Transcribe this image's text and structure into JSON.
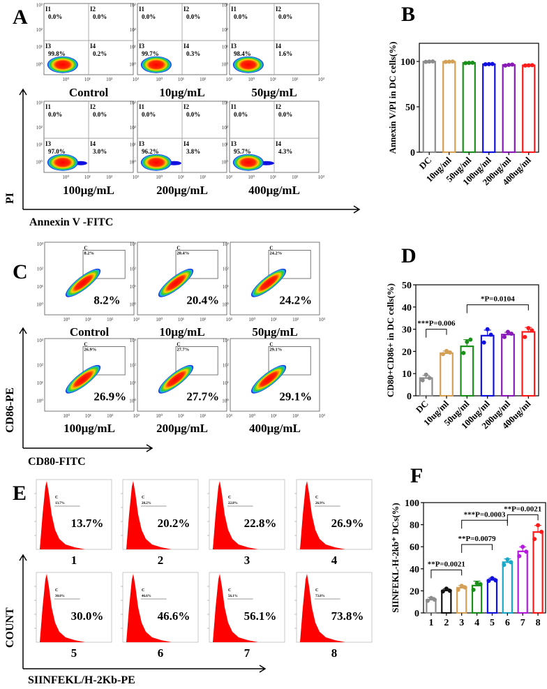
{
  "panel_a": {
    "letter": "A",
    "y_axis_label": "PI",
    "x_axis_label": "Annexin V -FITC",
    "quadrant_names": [
      "I1",
      "I2",
      "I3",
      "I4"
    ],
    "plots": [
      {
        "label": "Control",
        "q": [
          "0.0%",
          "0.0%",
          "99.8%",
          "0.2%"
        ]
      },
      {
        "label": "10μg/mL",
        "q": [
          "0.0%",
          "0.0%",
          "99.7%",
          "0.3%"
        ]
      },
      {
        "label": "50μg/mL",
        "q": [
          "0.0%",
          "0.0%",
          "98.4%",
          "1.6%"
        ]
      },
      {
        "label": "100μg/mL",
        "q": [
          "0.0%",
          "0.0%",
          "97.0%",
          "3.0%"
        ]
      },
      {
        "label": "200μg/mL",
        "q": [
          "0.0%",
          "0.0%",
          "96.2%",
          "3.8%"
        ]
      },
      {
        "label": "400μg/mL",
        "q": [
          "0.0%",
          "0.0%",
          "95.7%",
          "4.3%"
        ]
      }
    ]
  },
  "panel_c": {
    "letter": "C",
    "y_axis_label": "CD86-PE",
    "x_axis_label": "CD80-FITC",
    "gate_name": "C",
    "plots": [
      {
        "label": "Control",
        "pct": "8.2%"
      },
      {
        "label": "10μg/mL",
        "pct": "20.4%"
      },
      {
        "label": "50μg/mL",
        "pct": "24.2%"
      },
      {
        "label": "100μg/mL",
        "pct": "26.9%"
      },
      {
        "label": "200μg/mL",
        "pct": "27.7%"
      },
      {
        "label": "400μg/mL",
        "pct": "29.1%"
      }
    ]
  },
  "panel_e": {
    "letter": "E",
    "y_axis_label": "COUNT",
    "x_axis_label": "SIINFEKL/H-2Kb-PE",
    "gate_name": "C",
    "plots": [
      {
        "label": "1",
        "pct": "13.7%"
      },
      {
        "label": "2",
        "pct": "20.2%"
      },
      {
        "label": "3",
        "pct": "22.8%"
      },
      {
        "label": "4",
        "pct": "26.9%"
      },
      {
        "label": "5",
        "pct": "30.0%"
      },
      {
        "label": "6",
        "pct": "46.6%"
      },
      {
        "label": "7",
        "pct": "56.1%"
      },
      {
        "label": "8",
        "pct": "73.8%"
      }
    ]
  },
  "log_ticks": [
    "10⁰",
    "10¹",
    "10²",
    "10³"
  ],
  "chart_data": [
    {
      "panel": "B",
      "type": "bar",
      "title": "",
      "ylabel": "Annexin V/PI in DC cells(%)",
      "xlabel": "",
      "categories": [
        "DC",
        "10ug/ml",
        "50ug/ml",
        "100ug/ml",
        "200ug/ml",
        "400ug/ml"
      ],
      "values": [
        99.8,
        99.7,
        98.4,
        97.0,
        96.2,
        95.7
      ],
      "points": [
        [
          99.5,
          99.8,
          100
        ],
        [
          99.5,
          99.7,
          99.9
        ],
        [
          98.2,
          98.4,
          98.6
        ],
        [
          96.8,
          97.0,
          97.2
        ],
        [
          95.5,
          96.2,
          96.5
        ],
        [
          95.5,
          95.7,
          95.9
        ]
      ],
      "colors": [
        "#8c8c8c",
        "#d4a056",
        "#1a8f1a",
        "#1010e0",
        "#8a1ab8",
        "#ff1a1a"
      ],
      "yticks": [
        0,
        50,
        100
      ],
      "ylim": [
        0,
        120
      ],
      "annotations": []
    },
    {
      "panel": "D",
      "type": "bar",
      "title": "",
      "ylabel": "CD80+CD86+ in DC cells(%)",
      "xlabel": "",
      "categories": [
        "DC",
        "10ug/ml",
        "50ug/ml",
        "100ug/ml",
        "200ug/ml",
        "400ug/ml"
      ],
      "values": [
        8.0,
        19.2,
        22.3,
        27.1,
        27.6,
        28.8
      ],
      "errors": [
        1.2,
        1.0,
        3.0,
        2.5,
        1.0,
        2.0
      ],
      "points": [
        [
          7.0,
          9.5,
          8.0
        ],
        [
          18.8,
          20.2,
          19.5
        ],
        [
          19.3,
          24.3,
          25.3
        ],
        [
          24.0,
          30.0,
          27.5
        ],
        [
          26.5,
          28.8,
          28.0
        ],
        [
          26.5,
          30.5,
          29.5
        ]
      ],
      "colors": [
        "#8c8c8c",
        "#d4a056",
        "#1a8f1a",
        "#1010e0",
        "#8a1ab8",
        "#ff1a1a"
      ],
      "yticks": [
        0,
        10,
        20,
        30,
        40,
        50
      ],
      "ylim": [
        0,
        50
      ],
      "annotations": [
        {
          "text": "***P=0.006",
          "from": 0,
          "to": 1,
          "level": 30
        },
        {
          "text": "*P=0.0104",
          "from": 2,
          "to": 5,
          "level": 41
        }
      ]
    },
    {
      "panel": "F",
      "type": "bar",
      "title": "",
      "ylabel": "SIINFEKL-H-2kb⁺ DCs(%)",
      "xlabel": "",
      "categories": [
        "1",
        "2",
        "3",
        "4",
        "5",
        "6",
        "7",
        "8"
      ],
      "values": [
        12.0,
        20.3,
        22.8,
        24.8,
        30.0,
        46.0,
        55.8,
        73.3
      ],
      "errors": [
        2.0,
        1.5,
        2.0,
        4.0,
        1.5,
        3.0,
        4.0,
        6.0
      ],
      "points": [
        [
          11,
          13.5,
          12
        ],
        [
          19.5,
          22,
          20
        ],
        [
          21,
          24.5,
          23
        ],
        [
          21,
          27,
          26
        ],
        [
          29,
          31.5,
          29.5
        ],
        [
          43.5,
          48.5,
          46
        ],
        [
          51.5,
          60,
          55.5
        ],
        [
          67,
          79.5,
          73.5
        ]
      ],
      "colors": [
        "#8c8c8c",
        "#111111",
        "#d4a056",
        "#1a8f1a",
        "#1010e0",
        "#1aa8c8",
        "#b61ae0",
        "#ff1a1a"
      ],
      "yticks": [
        0,
        20,
        40,
        60,
        80,
        100
      ],
      "ylim": [
        0,
        100
      ],
      "annotations": [
        {
          "text": "**P=0.0021",
          "from": 0,
          "to": 2,
          "level": 39
        },
        {
          "text": "**P=0.0079",
          "from": 2,
          "to": 4,
          "level": 62
        },
        {
          "text": "***P=0.0003",
          "from": 2,
          "to": 5,
          "level": 84
        },
        {
          "text": "**P=0.0021",
          "from": 5,
          "to": 7,
          "level": 89
        }
      ]
    }
  ]
}
